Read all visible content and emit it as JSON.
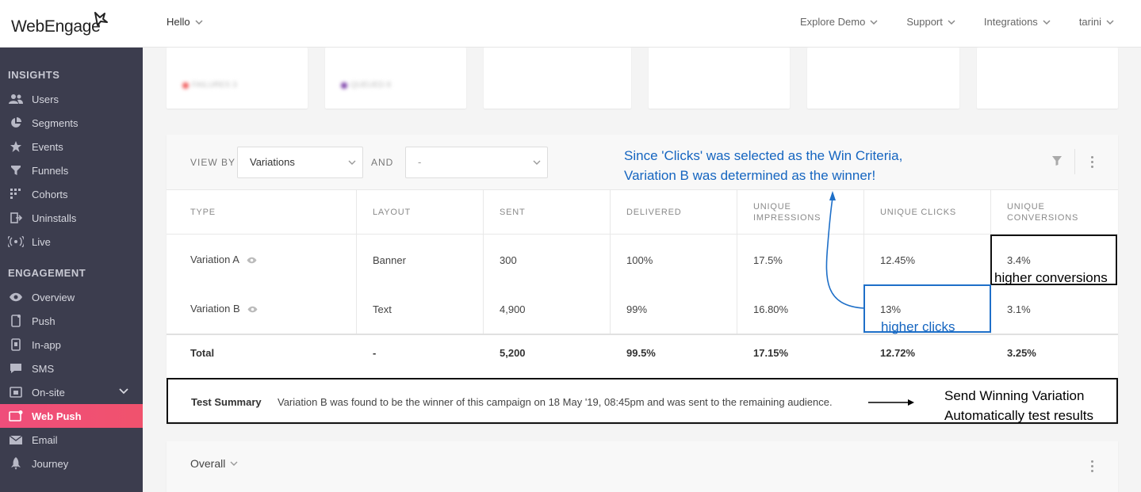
{
  "topbar": {
    "logo_text": "WebEngage",
    "project": "Hello",
    "menu": [
      "Explore Demo",
      "Support",
      "Integrations",
      "tarini"
    ]
  },
  "sidebar": {
    "sections": [
      {
        "title": "INSIGHTS",
        "items": [
          {
            "label": "Users",
            "icon": "users-icon"
          },
          {
            "label": "Segments",
            "icon": "pie-icon"
          },
          {
            "label": "Events",
            "icon": "star-icon"
          },
          {
            "label": "Funnels",
            "icon": "funnel-icon"
          },
          {
            "label": "Cohorts",
            "icon": "grid-icon"
          },
          {
            "label": "Uninstalls",
            "icon": "exit-icon"
          },
          {
            "label": "Live",
            "icon": "broadcast-icon"
          }
        ]
      },
      {
        "title": "ENGAGEMENT",
        "items": [
          {
            "label": "Overview",
            "icon": "eye-icon"
          },
          {
            "label": "Push",
            "icon": "mobile-icon"
          },
          {
            "label": "In-app",
            "icon": "mobile-icon"
          },
          {
            "label": "SMS",
            "icon": "chat-icon"
          },
          {
            "label": "On-site",
            "icon": "window-icon",
            "expandable": true
          },
          {
            "label": "Web Push",
            "icon": "web-push-icon",
            "active": true
          },
          {
            "label": "Email",
            "icon": "mail-icon"
          },
          {
            "label": "Journey",
            "icon": "rocket-icon"
          }
        ]
      }
    ]
  },
  "stats": {
    "failures_label": "FAILURES 3",
    "queued_label": "QUEUED 8"
  },
  "filters": {
    "view_by_label": "VIEW BY",
    "view_by_value": "Variations",
    "and_label": "AND",
    "and_value": "-"
  },
  "table": {
    "headers": [
      "TYPE",
      "LAYOUT",
      "SENT",
      "DELIVERED",
      "UNIQUE IMPRESSIONS",
      "UNIQUE CLICKS",
      "UNIQUE CONVERSIONS"
    ],
    "headers_split": {
      "impressions": [
        "UNIQUE",
        "IMPRESSIONS"
      ],
      "conversions": [
        "UNIQUE",
        "CONVERSIONS"
      ]
    },
    "rows": [
      [
        "Variation A",
        "Banner",
        "300",
        "100%",
        "17.5%",
        "12.45%",
        "3.4%"
      ],
      [
        "Variation B",
        "Text",
        "4,900",
        "99%",
        "16.80%",
        "13%",
        "3.1%"
      ]
    ],
    "total": [
      "Total",
      "-",
      "5,200",
      "99.5%",
      "17.15%",
      "12.72%",
      "3.25%"
    ]
  },
  "summary": {
    "title": "Test Summary",
    "text": "Variation B was found to be the winner of this campaign on 18 May '19, 08:45pm and was sent to the remaining audience.",
    "note_line1": "Send Winning Variation",
    "note_line2": "Automatically test results"
  },
  "annotations": {
    "win_line1": "Since 'Clicks' was selected as the Win Criteria,",
    "win_line2": "Variation B was determined as the winner!",
    "higher_conversions": "higher conversions",
    "higher_clicks": "higher clicks"
  },
  "overall": {
    "label": "Overall"
  },
  "colors": {
    "sidebar_bg": "#3c3d4e",
    "active_item": "#ef4e7b",
    "annotation_blue": "#1565c0"
  }
}
